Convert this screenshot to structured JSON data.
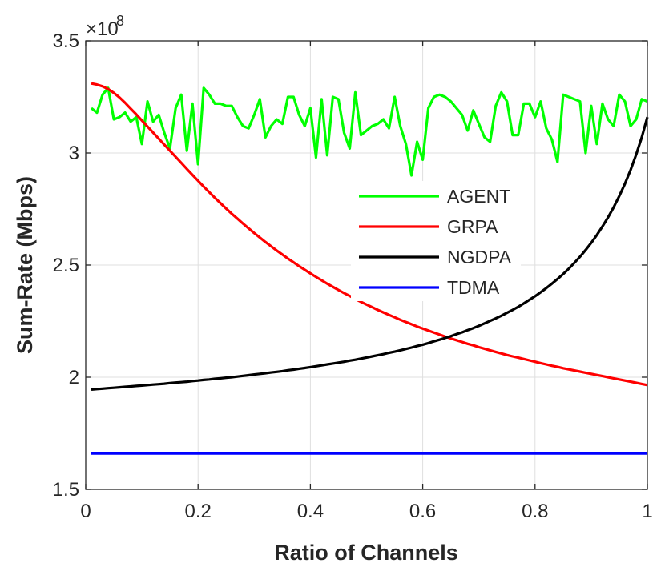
{
  "chart_data": {
    "type": "line",
    "title": "",
    "xlabel": "Ratio of Channels",
    "ylabel": "Sum-Rate (Mbps)",
    "xlim": [
      0,
      1
    ],
    "ylim": [
      1.5,
      3.5
    ],
    "x_ticks": [
      0,
      0.2,
      0.4,
      0.6,
      0.8,
      1
    ],
    "x_tick_labels": [
      "0",
      "0.2",
      "0.4",
      "0.6",
      "0.8",
      "1"
    ],
    "y_ticks": [
      1.5,
      2,
      2.5,
      3,
      3.5
    ],
    "y_tick_labels": [
      "1.5",
      "2",
      "2.5",
      "3",
      "3.5"
    ],
    "y_scale_label": "×10",
    "y_scale_exponent": "8",
    "grid": true,
    "legend_position": "center-right",
    "x": [
      0.01,
      0.02,
      0.03,
      0.04,
      0.05,
      0.06,
      0.07,
      0.08,
      0.09,
      0.1,
      0.11,
      0.12,
      0.13,
      0.14,
      0.15,
      0.16,
      0.17,
      0.18,
      0.19,
      0.2,
      0.21,
      0.22,
      0.23,
      0.24,
      0.25,
      0.26,
      0.27,
      0.28,
      0.29,
      0.3,
      0.31,
      0.32,
      0.33,
      0.34,
      0.35,
      0.36,
      0.37,
      0.38,
      0.39,
      0.4,
      0.41,
      0.42,
      0.43,
      0.44,
      0.45,
      0.46,
      0.47,
      0.48,
      0.49,
      0.5,
      0.51,
      0.52,
      0.53,
      0.54,
      0.55,
      0.56,
      0.57,
      0.58,
      0.59,
      0.6,
      0.61,
      0.62,
      0.63,
      0.64,
      0.65,
      0.66,
      0.67,
      0.68,
      0.69,
      0.7,
      0.71,
      0.72,
      0.73,
      0.74,
      0.75,
      0.76,
      0.77,
      0.78,
      0.79,
      0.8,
      0.81,
      0.82,
      0.83,
      0.84,
      0.85,
      0.86,
      0.87,
      0.88,
      0.89,
      0.9,
      0.91,
      0.92,
      0.93,
      0.94,
      0.95,
      0.96,
      0.97,
      0.98,
      0.99,
      1.0
    ],
    "series": [
      {
        "name": "AGENT",
        "color": "#00ff00",
        "values": [
          3.2,
          3.18,
          3.26,
          3.29,
          3.15,
          3.16,
          3.18,
          3.14,
          3.16,
          3.04,
          3.23,
          3.14,
          3.17,
          3.09,
          3.02,
          3.2,
          3.26,
          3.01,
          3.22,
          2.95,
          3.29,
          3.26,
          3.22,
          3.22,
          3.21,
          3.21,
          3.16,
          3.12,
          3.11,
          3.17,
          3.24,
          3.07,
          3.12,
          3.15,
          3.13,
          3.25,
          3.25,
          3.17,
          3.12,
          3.2,
          2.98,
          3.24,
          2.99,
          3.25,
          3.24,
          3.09,
          3.02,
          3.27,
          3.08,
          3.1,
          3.12,
          3.13,
          3.15,
          3.11,
          3.25,
          3.12,
          3.04,
          2.9,
          3.05,
          2.97,
          3.2,
          3.25,
          3.26,
          3.25,
          3.23,
          3.2,
          3.17,
          3.1,
          3.19,
          3.13,
          3.07,
          3.05,
          3.21,
          3.27,
          3.23,
          3.08,
          3.08,
          3.22,
          3.22,
          3.16,
          3.23,
          3.11,
          3.06,
          2.96,
          3.26,
          3.25,
          3.24,
          3.23,
          3.0,
          3.21,
          3.04,
          3.22,
          3.15,
          3.12,
          3.26,
          3.23,
          3.12,
          3.15,
          3.24,
          3.23
        ]
      },
      {
        "name": "GRPA",
        "color": "#ff0000",
        "values": [
          3.31,
          3.305,
          3.297,
          3.285,
          3.268,
          3.248,
          3.224,
          3.198,
          3.172,
          3.145,
          3.118,
          3.091,
          3.064,
          3.037,
          3.01,
          2.983,
          2.956,
          2.929,
          2.902,
          2.876,
          2.85,
          2.825,
          2.8,
          2.776,
          2.752,
          2.729,
          2.707,
          2.685,
          2.664,
          2.643,
          2.623,
          2.603,
          2.584,
          2.565,
          2.547,
          2.529,
          2.512,
          2.495,
          2.479,
          2.463,
          2.447,
          2.432,
          2.417,
          2.403,
          2.389,
          2.375,
          2.362,
          2.349,
          2.336,
          2.324,
          2.312,
          2.3,
          2.289,
          2.278,
          2.267,
          2.256,
          2.246,
          2.236,
          2.226,
          2.217,
          2.208,
          2.199,
          2.19,
          2.181,
          2.173,
          2.165,
          2.157,
          2.149,
          2.142,
          2.134,
          2.127,
          2.12,
          2.113,
          2.106,
          2.099,
          2.093,
          2.087,
          2.081,
          2.075,
          2.069,
          2.063,
          2.057,
          2.051,
          2.046,
          2.04,
          2.035,
          2.03,
          2.025,
          2.02,
          2.015,
          2.01,
          2.005,
          2.0,
          1.995,
          1.99,
          1.985,
          1.98,
          1.975,
          1.97,
          1.965
        ]
      },
      {
        "name": "NGDPA",
        "color": "#000000",
        "values": [
          1.945,
          1.947,
          1.949,
          1.951,
          1.953,
          1.955,
          1.957,
          1.959,
          1.961,
          1.963,
          1.965,
          1.967,
          1.969,
          1.971,
          1.974,
          1.976,
          1.978,
          1.98,
          1.983,
          1.985,
          1.988,
          1.99,
          1.993,
          1.995,
          1.998,
          2.0,
          2.003,
          2.006,
          2.009,
          2.012,
          2.015,
          2.018,
          2.021,
          2.024,
          2.027,
          2.031,
          2.034,
          2.038,
          2.041,
          2.045,
          2.049,
          2.053,
          2.057,
          2.061,
          2.065,
          2.069,
          2.074,
          2.078,
          2.083,
          2.088,
          2.093,
          2.098,
          2.103,
          2.109,
          2.114,
          2.12,
          2.126,
          2.132,
          2.139,
          2.145,
          2.152,
          2.16,
          2.167,
          2.175,
          2.183,
          2.192,
          2.2,
          2.21,
          2.219,
          2.229,
          2.24,
          2.251,
          2.262,
          2.274,
          2.287,
          2.3,
          2.314,
          2.329,
          2.345,
          2.361,
          2.379,
          2.397,
          2.417,
          2.438,
          2.46,
          2.484,
          2.51,
          2.537,
          2.567,
          2.599,
          2.634,
          2.672,
          2.713,
          2.758,
          2.808,
          2.863,
          2.924,
          2.993,
          3.07,
          3.16
        ]
      },
      {
        "name": "TDMA",
        "color": "#0000ff",
        "values": [
          1.66,
          1.66,
          1.66,
          1.66,
          1.66,
          1.66,
          1.66,
          1.66,
          1.66,
          1.66,
          1.66,
          1.66,
          1.66,
          1.66,
          1.66,
          1.66,
          1.66,
          1.66,
          1.66,
          1.66,
          1.66,
          1.66,
          1.66,
          1.66,
          1.66,
          1.66,
          1.66,
          1.66,
          1.66,
          1.66,
          1.66,
          1.66,
          1.66,
          1.66,
          1.66,
          1.66,
          1.66,
          1.66,
          1.66,
          1.66,
          1.66,
          1.66,
          1.66,
          1.66,
          1.66,
          1.66,
          1.66,
          1.66,
          1.66,
          1.66,
          1.66,
          1.66,
          1.66,
          1.66,
          1.66,
          1.66,
          1.66,
          1.66,
          1.66,
          1.66,
          1.66,
          1.66,
          1.66,
          1.66,
          1.66,
          1.66,
          1.66,
          1.66,
          1.66,
          1.66,
          1.66,
          1.66,
          1.66,
          1.66,
          1.66,
          1.66,
          1.66,
          1.66,
          1.66,
          1.66,
          1.66,
          1.66,
          1.66,
          1.66,
          1.66,
          1.66,
          1.66,
          1.66,
          1.66,
          1.66,
          1.66,
          1.66,
          1.66,
          1.66,
          1.66,
          1.66,
          1.66,
          1.66,
          1.66,
          1.66
        ]
      }
    ]
  }
}
